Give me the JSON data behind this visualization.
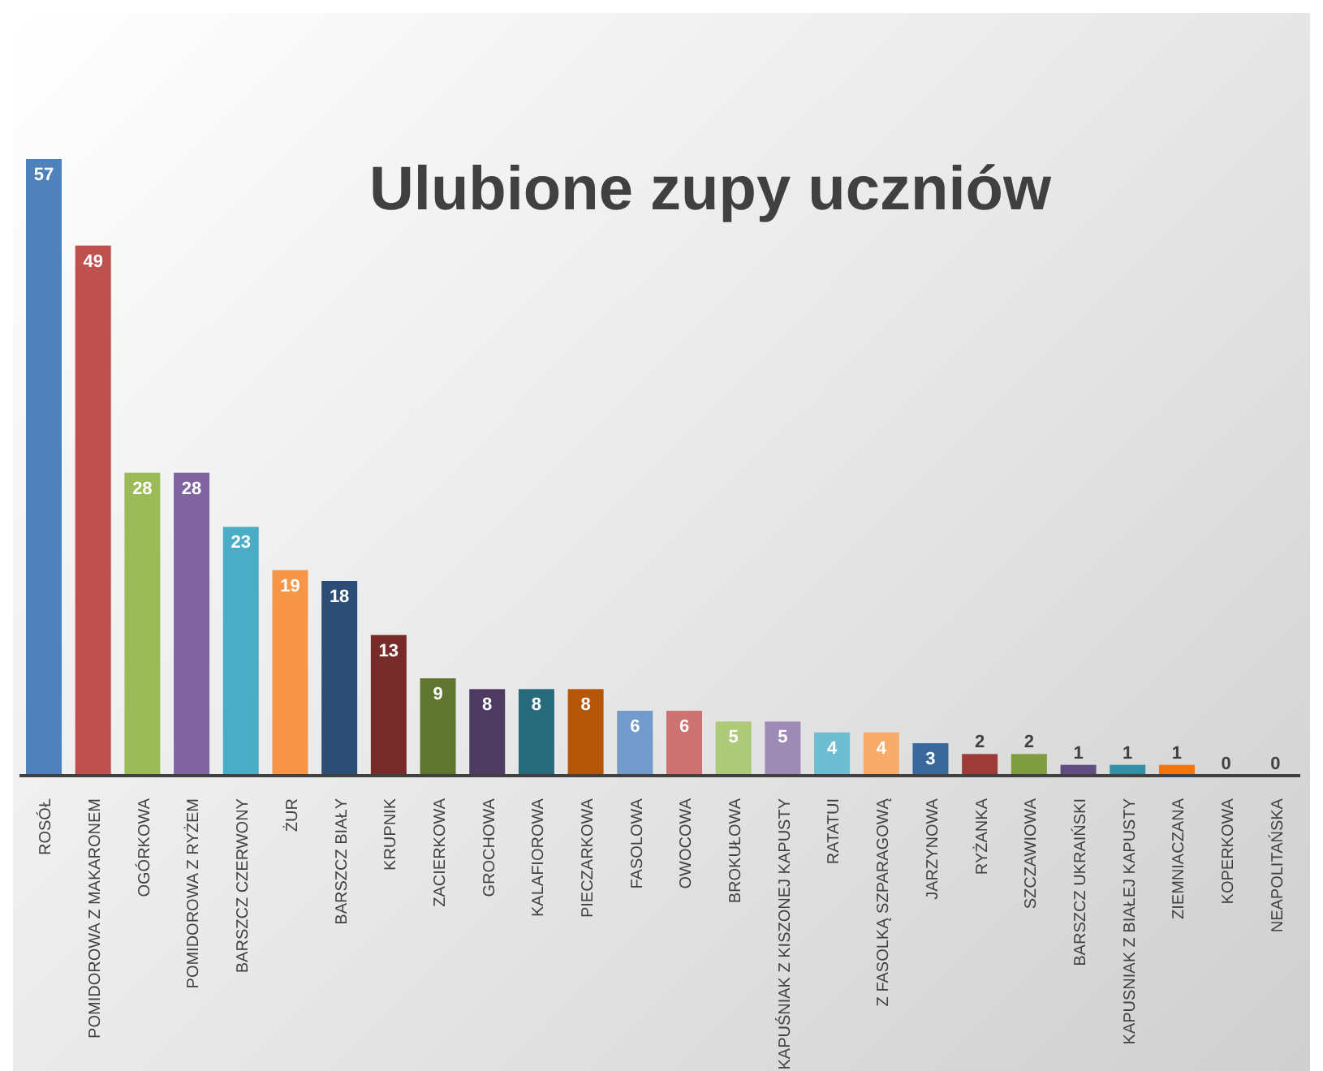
{
  "chart_data": {
    "type": "bar",
    "title": "Ulubione zupy uczniów",
    "categories": [
      "ROSÓŁ",
      "POMIDOROWA Z MAKARONEM",
      "OGÓRKOWA",
      "POMIDOROWA Z RYŻEM",
      "BARSZCZ CZERWONY",
      "ŻUR",
      "BARSZCZ BIAŁY",
      "KRUPNIK",
      "ZACIERKOWA",
      "GROCHOWA",
      "KALAFIOROWA",
      "PIECZARKOWA",
      "FASOLOWA",
      "OWOCOWA",
      "BROKUŁOWA",
      "KAPUŚNIAK Z KISZONEJ KAPUSTY",
      "RATATUI",
      "Z FASOLKĄ SZPARAGOWĄ",
      "JARZYNOWA",
      "RYŻANKA",
      "SZCZAWIOWA",
      "BARSZCZ UKRAIŃSKI",
      "KAPUSNIAK Z BIAŁEJ KAPUSTY",
      "ZIEMNIACZANA",
      "KOPERKOWA",
      "NEAPOLITAŃSKA"
    ],
    "values": [
      57,
      49,
      28,
      28,
      23,
      19,
      18,
      13,
      9,
      8,
      8,
      8,
      6,
      6,
      5,
      5,
      4,
      4,
      3,
      2,
      2,
      1,
      1,
      1,
      0,
      0
    ],
    "colors": [
      "#4f81bd",
      "#c0504d",
      "#9bbb59",
      "#8064a2",
      "#4bacc6",
      "#f79646",
      "#2c4d75",
      "#772c2a",
      "#5f7530",
      "#4d3b62",
      "#276a7c",
      "#b65708",
      "#729aca",
      "#cd7371",
      "#afc97a",
      "#9d8ab5",
      "#6fbdd1",
      "#f9ab6b",
      "#3a679c",
      "#9e3b38",
      "#7e9c40",
      "#604e82",
      "#338fa6",
      "#f3750b",
      "#a5b7d8",
      "#d99694"
    ],
    "data_labels": true,
    "tick_labels": "x"
  }
}
